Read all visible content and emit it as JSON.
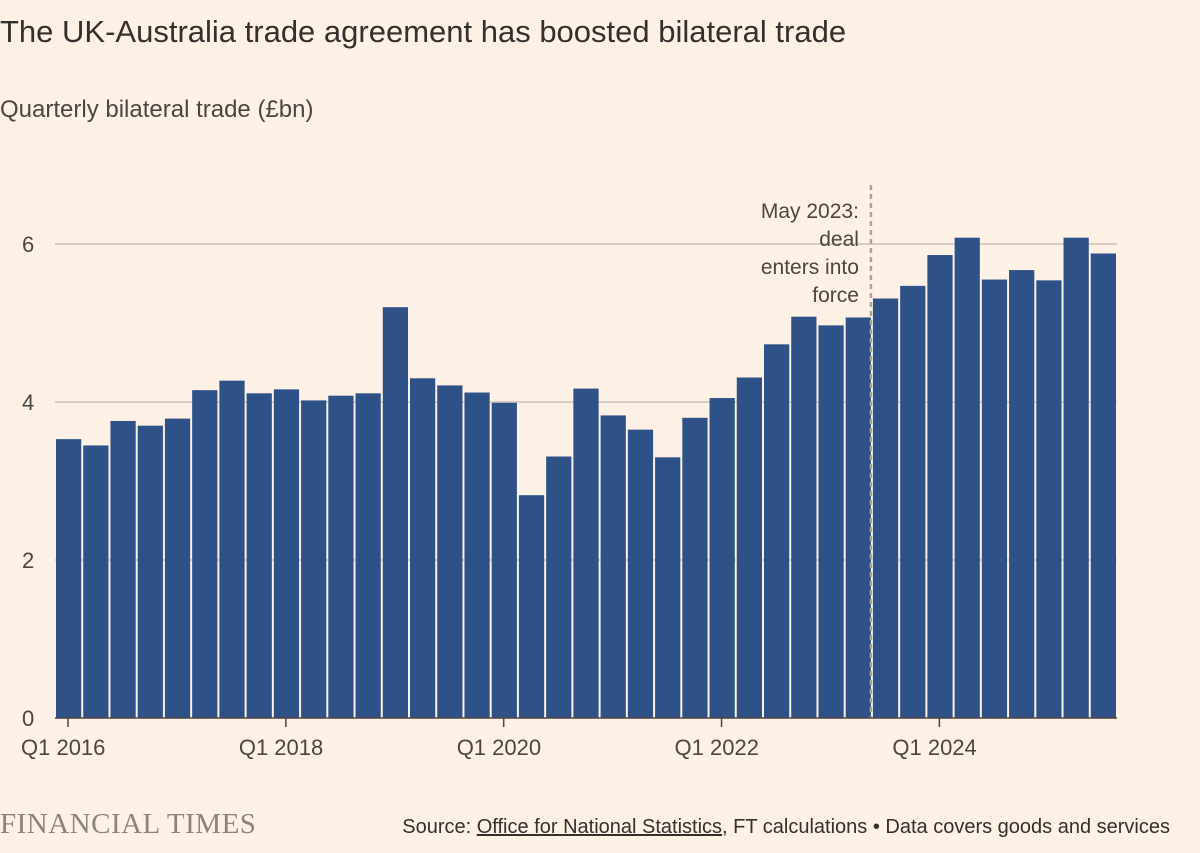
{
  "header": {
    "title": "The UK-Australia trade agreement has boosted bilateral trade",
    "subtitle": "Quarterly bilateral trade (£bn)"
  },
  "footer": {
    "brand": "FINANCIAL TIMES",
    "source_prefix": "Source: ",
    "source_link": "Office for National Statistics",
    "source_suffix": ", FT calculations • Data covers goods and services"
  },
  "colors": {
    "background": "#FDF1E5",
    "bar": "#2E5188",
    "gridline": "#CCC1B7",
    "annotation_line": "#A9A19A"
  },
  "chart_data": {
    "type": "bar",
    "title": "The UK-Australia trade agreement has boosted bilateral trade",
    "ylabel": "Quarterly bilateral trade (£bn)",
    "ylim": [
      0,
      7
    ],
    "yticks": [
      0,
      2,
      4,
      6
    ],
    "grid": true,
    "categories": [
      "Q1 2016",
      "Q2 2016",
      "Q3 2016",
      "Q4 2016",
      "Q1 2017",
      "Q2 2017",
      "Q3 2017",
      "Q4 2017",
      "Q1 2018",
      "Q2 2018",
      "Q3 2018",
      "Q4 2018",
      "Q1 2019",
      "Q2 2019",
      "Q3 2019",
      "Q4 2019",
      "Q1 2020",
      "Q2 2020",
      "Q3 2020",
      "Q4 2020",
      "Q1 2021",
      "Q2 2021",
      "Q3 2021",
      "Q4 2021",
      "Q1 2022",
      "Q2 2022",
      "Q3 2022",
      "Q4 2022",
      "Q1 2023",
      "Q2 2023",
      "Q3 2023",
      "Q4 2023",
      "Q1 2024",
      "Q2 2024",
      "Q3 2024",
      "Q4 2024",
      "Q1 2025",
      "Q2 2025",
      "Q3 2025"
    ],
    "xticks": [
      "Q1 2016",
      "Q1 2018",
      "Q1 2020",
      "Q1 2022",
      "Q1 2024"
    ],
    "values": [
      3.53,
      3.45,
      3.76,
      3.7,
      3.79,
      4.15,
      4.27,
      4.11,
      4.16,
      4.02,
      4.08,
      4.11,
      5.2,
      4.3,
      4.21,
      4.12,
      3.99,
      2.82,
      3.31,
      4.17,
      3.83,
      3.65,
      3.3,
      3.8,
      4.05,
      4.31,
      4.73,
      5.08,
      4.97,
      5.07,
      5.31,
      5.47,
      5.86,
      6.08,
      5.55,
      5.67,
      5.54,
      6.08,
      5.88
    ],
    "annotation": {
      "after_category": "Q2 2023",
      "lines": [
        "May 2023:",
        "deal",
        "enters into",
        "force"
      ]
    }
  }
}
